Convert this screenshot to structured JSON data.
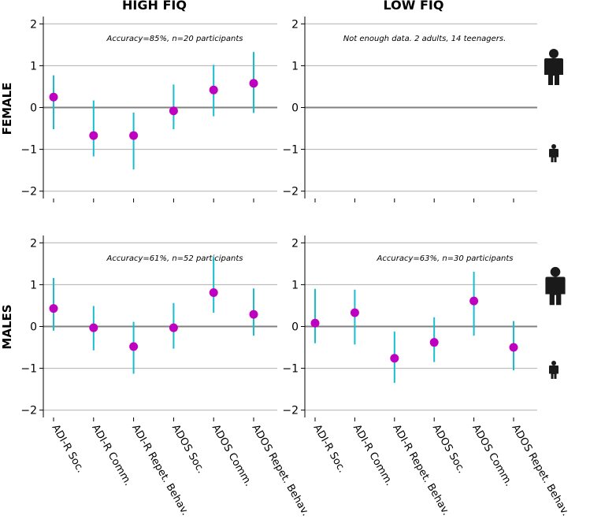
{
  "column_titles": [
    "HIGH FIQ",
    "LOW FIQ"
  ],
  "row_titles": [
    "FEMALE",
    "MALES"
  ],
  "icons": {
    "adult": "adult-person-icon",
    "teen": "teen-person-icon"
  },
  "colors": {
    "point": "#c000c0",
    "errorbar": "#17becf",
    "zero_line": "#808080",
    "grid": "#b0b0b0",
    "icon": "#1a1a1a"
  },
  "chart_data": [
    {
      "type": "scatter",
      "panel": "female-high-fiq",
      "annotation": "Accuracy=85%, n=20 participants",
      "categories": [
        "ADI-R Soc.",
        "ADI-R Comm.",
        "ADI-R Repet. Behav.",
        "ADOS Soc.",
        "ADOS Comm.",
        "ADOS Repet. Behav."
      ],
      "values": [
        0.25,
        -0.67,
        -0.67,
        -0.08,
        0.42,
        0.58
      ],
      "lower": [
        -0.52,
        -1.17,
        -1.48,
        -0.52,
        -0.21,
        -0.13
      ],
      "upper": [
        0.77,
        0.17,
        -0.12,
        0.55,
        1.02,
        1.33
      ],
      "yticks": [
        2,
        1,
        0,
        -1,
        -2
      ],
      "ylim": [
        -2.1,
        2.1
      ],
      "grid": true
    },
    {
      "type": "scatter",
      "panel": "female-low-fiq",
      "annotation": "Not enough data. 2 adults, 14 teenagers.",
      "categories": [
        "ADI-R Soc.",
        "ADI-R Comm.",
        "ADI-R Repet. Behav.",
        "ADOS Soc.",
        "ADOS Comm.",
        "ADOS Repet. Behav."
      ],
      "values": [],
      "lower": [],
      "upper": [],
      "yticks": [
        2,
        1,
        0,
        -1,
        -2
      ],
      "ylim": [
        -2.1,
        2.1
      ],
      "grid": true
    },
    {
      "type": "scatter",
      "panel": "male-high-fiq",
      "annotation": "Accuracy=61%, n=52 participants",
      "categories": [
        "ADI-R Soc.",
        "ADI-R Comm.",
        "ADI-R Repet. Behav.",
        "ADOS Soc.",
        "ADOS Comm.",
        "ADOS Repet. Behav."
      ],
      "values": [
        0.43,
        -0.03,
        -0.48,
        -0.03,
        0.81,
        0.29
      ],
      "lower": [
        -0.1,
        -0.57,
        -1.13,
        -0.53,
        0.33,
        -0.22
      ],
      "upper": [
        1.16,
        0.49,
        0.11,
        0.56,
        1.67,
        0.91
      ],
      "yticks": [
        2,
        1,
        0,
        -1,
        -2
      ],
      "ylim": [
        -2.1,
        2.1
      ],
      "grid": true
    },
    {
      "type": "scatter",
      "panel": "male-low-fiq",
      "annotation": "Accuracy=63%, n=30 participants",
      "categories": [
        "ADI-R Soc.",
        "ADI-R Comm.",
        "ADI-R Repet. Behav.",
        "ADOS Soc.",
        "ADOS Comm.",
        "ADOS Repet. Behav."
      ],
      "values": [
        0.08,
        0.33,
        -0.76,
        -0.38,
        0.61,
        -0.5
      ],
      "lower": [
        -0.4,
        -0.43,
        -1.35,
        -0.85,
        -0.22,
        -1.05
      ],
      "upper": [
        0.9,
        0.88,
        -0.12,
        0.22,
        1.31,
        0.13
      ],
      "yticks": [
        2,
        1,
        0,
        -1,
        -2
      ],
      "ylim": [
        -2.1,
        2.1
      ],
      "grid": true
    }
  ]
}
